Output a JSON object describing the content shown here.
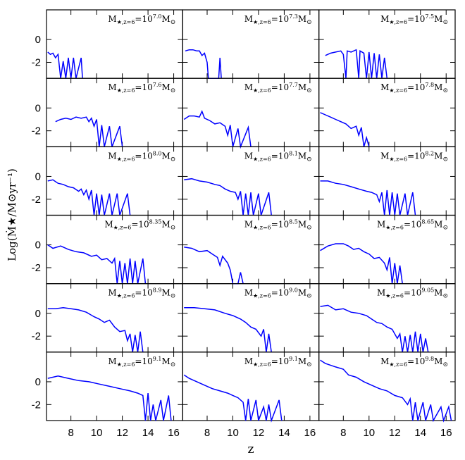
{
  "chart_data": {
    "type": "line",
    "color": "#0000ff",
    "xlabel": "z",
    "ylabel": "Log(Ṁ★/M⊙yr⁻¹)",
    "xlim": [
      6.1,
      16.7
    ],
    "ylim": [
      -3.4,
      2.6
    ],
    "xticks": [
      8,
      10,
      12,
      14,
      16
    ],
    "yticks": [
      -2,
      0
    ],
    "panel_label": {
      "symbol": "M",
      "subscript": "★,z=6",
      "base": "=10",
      "unit": "M",
      "unit_subscript": "⊙"
    },
    "panels": [
      {
        "exponent": "7.0",
        "x": [
          6.2,
          6.4,
          6.6,
          6.8,
          7.0,
          7.2,
          7.4,
          7.6,
          7.8,
          8.0,
          8.2,
          8.4,
          8.8,
          8.9
        ],
        "values": [
          -1.1,
          -1.3,
          -1.2,
          -1.6,
          -1.3,
          -3.4,
          -1.9,
          -3.4,
          -1.6,
          -3.4,
          -1.6,
          -3.4,
          -1.6,
          -3.4
        ]
      },
      {
        "exponent": "7.3",
        "x": [
          6.3,
          6.6,
          6.9,
          7.2,
          7.4,
          7.6,
          7.8,
          8.0,
          8.1,
          8.9,
          9.0,
          9.1
        ],
        "values": [
          -1.0,
          -0.9,
          -0.9,
          -1.0,
          -1.0,
          -1.4,
          -1.2,
          -2.0,
          -3.4,
          -3.4,
          -1.6,
          -3.4
        ]
      },
      {
        "exponent": "7.5",
        "x": [
          6.6,
          7.0,
          7.4,
          7.8,
          8.0,
          8.2,
          8.3,
          8.6,
          9.0,
          9.2,
          9.3,
          9.6,
          9.8,
          10.0,
          10.2,
          10.4,
          10.6,
          10.8,
          11.0,
          11.2,
          11.4
        ],
        "values": [
          -1.4,
          -1.2,
          -1.1,
          -1.0,
          -1.3,
          -3.4,
          -1.0,
          -1.1,
          -0.9,
          -3.4,
          -1.0,
          -1.2,
          -3.4,
          -1.1,
          -3.4,
          -1.2,
          -3.4,
          -1.3,
          -3.4,
          -1.6,
          -3.4
        ]
      },
      {
        "exponent": "7.6",
        "x": [
          6.8,
          7.2,
          7.6,
          8.0,
          8.4,
          8.8,
          9.2,
          9.4,
          9.6,
          9.8,
          10.0,
          10.2,
          10.4,
          10.6,
          11.0,
          11.2,
          11.8,
          12.0
        ],
        "values": [
          -1.2,
          -1.0,
          -0.9,
          -1.0,
          -0.8,
          -0.9,
          -0.8,
          -1.2,
          -0.9,
          -1.6,
          -1.0,
          -3.4,
          -1.5,
          -3.4,
          -1.6,
          -3.4,
          -1.6,
          -3.4
        ]
      },
      {
        "exponent": "7.7",
        "x": [
          6.2,
          6.6,
          7.0,
          7.4,
          7.6,
          7.8,
          8.2,
          8.6,
          9.0,
          9.4,
          9.6,
          9.8,
          10.0,
          10.4,
          10.6,
          11.2,
          11.4
        ],
        "values": [
          -1.0,
          -0.7,
          -0.7,
          -0.8,
          -0.3,
          -0.9,
          -1.1,
          -1.4,
          -1.3,
          -1.6,
          -2.4,
          -1.5,
          -3.4,
          -1.8,
          -3.4,
          -1.7,
          -3.4
        ]
      },
      {
        "exponent": "7.8",
        "x": [
          6.2,
          6.6,
          7.0,
          7.4,
          7.8,
          8.2,
          8.6,
          9.0,
          9.2,
          9.4,
          9.6,
          9.8,
          10.0
        ],
        "values": [
          -0.4,
          -0.6,
          -0.8,
          -1.0,
          -1.2,
          -1.4,
          -1.8,
          -1.6,
          -2.4,
          -1.7,
          -3.4,
          -2.6,
          -3.4
        ]
      },
      {
        "exponent": "8.0",
        "x": [
          6.2,
          6.6,
          7.0,
          7.4,
          7.8,
          8.2,
          8.6,
          8.8,
          9.0,
          9.2,
          9.4,
          9.6,
          9.8,
          10.0,
          10.2,
          10.4,
          10.6,
          11.0,
          11.2,
          11.6,
          11.8,
          12.4,
          12.6
        ],
        "values": [
          -0.4,
          -0.3,
          -0.6,
          -0.7,
          -0.9,
          -1.0,
          -1.3,
          -1.1,
          -1.6,
          -1.2,
          -2.0,
          -1.2,
          -3.4,
          -1.5,
          -3.4,
          -1.6,
          -3.4,
          -1.5,
          -3.4,
          -1.5,
          -3.4,
          -1.5,
          -3.4
        ]
      },
      {
        "exponent": "8.1",
        "x": [
          6.2,
          6.8,
          7.4,
          8.0,
          8.6,
          9.0,
          9.4,
          9.8,
          10.2,
          10.4,
          10.6,
          10.8,
          11.0,
          11.2,
          11.4,
          11.6,
          12.0,
          12.2,
          12.8,
          13.0
        ],
        "values": [
          -0.3,
          -0.2,
          -0.4,
          -0.5,
          -0.7,
          -0.8,
          -1.1,
          -1.3,
          -1.4,
          -2.0,
          -1.3,
          -3.4,
          -1.5,
          -3.4,
          -1.4,
          -3.4,
          -1.5,
          -3.4,
          -1.4,
          -3.4
        ]
      },
      {
        "exponent": "8.2",
        "x": [
          6.2,
          6.8,
          7.4,
          8.0,
          8.6,
          9.2,
          9.8,
          10.2,
          10.6,
          10.8,
          11.0,
          11.2,
          11.4,
          11.6,
          11.8,
          12.0,
          12.2,
          12.4,
          12.8,
          13.0,
          13.4,
          13.6
        ],
        "values": [
          -0.4,
          -0.4,
          -0.6,
          -0.7,
          -0.9,
          -1.1,
          -1.3,
          -1.4,
          -1.6,
          -2.2,
          -1.4,
          -3.4,
          -1.2,
          -3.4,
          -1.4,
          -3.4,
          -1.5,
          -3.4,
          -1.5,
          -3.4,
          -1.4,
          -3.4
        ]
      },
      {
        "exponent": "8.35",
        "x": [
          6.2,
          6.6,
          7.2,
          7.8,
          8.4,
          9.0,
          9.6,
          10.0,
          10.4,
          10.8,
          11.2,
          11.4,
          11.6,
          11.8,
          12.0,
          12.2,
          12.4,
          12.6,
          12.8,
          13.0,
          13.2,
          13.6,
          13.8
        ],
        "values": [
          0.0,
          -0.3,
          -0.1,
          -0.4,
          -0.6,
          -0.7,
          -1.0,
          -0.9,
          -1.3,
          -1.2,
          -1.6,
          -1.2,
          -3.4,
          -1.4,
          -3.4,
          -1.6,
          -3.4,
          -1.2,
          -3.4,
          -1.4,
          -3.4,
          -1.2,
          -3.4
        ]
      },
      {
        "exponent": "8.5",
        "x": [
          6.2,
          6.8,
          7.4,
          8.0,
          8.4,
          8.8,
          9.0,
          9.2,
          9.6,
          9.8,
          10.0,
          10.4,
          10.6,
          10.8
        ],
        "values": [
          -0.2,
          -0.3,
          -0.6,
          -0.5,
          -0.8,
          -1.1,
          -1.8,
          -1.0,
          -1.6,
          -2.2,
          -3.4,
          -3.4,
          -2.4,
          -3.4
        ]
      },
      {
        "exponent": "8.65",
        "x": [
          6.2,
          6.8,
          7.4,
          8.0,
          8.4,
          8.8,
          9.2,
          9.6,
          10.0,
          10.4,
          10.8,
          11.2,
          11.4,
          11.6,
          11.8,
          12.0,
          12.2,
          12.4,
          12.6
        ],
        "values": [
          -0.5,
          -0.1,
          0.1,
          0.1,
          -0.1,
          -0.4,
          -0.3,
          -0.6,
          -0.8,
          -1.2,
          -1.1,
          -1.6,
          -2.2,
          -1.1,
          -3.4,
          -1.6,
          -3.4,
          -1.8,
          -3.4
        ]
      },
      {
        "exponent": "8.9",
        "x": [
          6.2,
          6.8,
          7.4,
          8.0,
          8.6,
          9.2,
          9.8,
          10.2,
          10.6,
          11.0,
          11.4,
          11.8,
          12.2,
          12.4,
          12.6,
          12.8,
          13.0,
          13.2,
          13.4,
          13.6
        ],
        "values": [
          0.4,
          0.4,
          0.5,
          0.4,
          0.3,
          0.1,
          -0.3,
          -0.5,
          -0.8,
          -0.6,
          -1.2,
          -1.6,
          -1.5,
          -2.4,
          -1.8,
          -3.4,
          -1.9,
          -3.4,
          -1.6,
          -3.4
        ]
      },
      {
        "exponent": "9.0",
        "x": [
          6.2,
          7.0,
          7.8,
          8.6,
          9.4,
          10.0,
          10.6,
          11.0,
          11.4,
          11.8,
          12.2,
          12.4,
          12.6,
          12.8,
          13.0
        ],
        "values": [
          0.5,
          0.5,
          0.4,
          0.3,
          0.0,
          -0.2,
          -0.5,
          -0.8,
          -1.2,
          -1.4,
          -2.0,
          -1.4,
          -3.4,
          -1.8,
          -3.4
        ]
      },
      {
        "exponent": "9.05",
        "x": [
          6.2,
          6.8,
          7.4,
          8.0,
          8.6,
          9.2,
          9.8,
          10.2,
          10.6,
          11.0,
          11.4,
          11.8,
          12.2,
          12.4,
          12.6,
          12.8,
          13.0,
          13.2,
          13.4,
          13.6,
          13.8,
          14.0,
          14.2,
          14.4,
          14.6
        ],
        "values": [
          0.6,
          0.7,
          0.3,
          0.4,
          0.1,
          0.0,
          -0.2,
          -0.5,
          -0.8,
          -0.9,
          -1.2,
          -1.4,
          -2.2,
          -1.8,
          -3.4,
          -2.0,
          -3.4,
          -1.9,
          -3.4,
          -1.6,
          -3.4,
          -1.8,
          -3.4,
          -2.2,
          -3.4
        ]
      },
      {
        "exponent": "9.1",
        "x": [
          6.2,
          7.0,
          7.8,
          8.6,
          9.4,
          10.2,
          11.0,
          11.8,
          12.6,
          13.2,
          13.6,
          13.8,
          14.0,
          14.2,
          14.4,
          14.6,
          15.0,
          15.2,
          15.6,
          15.8
        ],
        "values": [
          0.3,
          0.5,
          0.3,
          0.1,
          0.0,
          -0.2,
          -0.4,
          -0.6,
          -0.8,
          -1.0,
          -1.2,
          -3.4,
          -1.0,
          -3.4,
          -2.0,
          -3.4,
          -1.6,
          -3.4,
          -1.2,
          -3.4
        ]
      },
      {
        "exponent": "9.1",
        "x": [
          6.2,
          6.6,
          7.2,
          7.8,
          8.4,
          9.0,
          9.6,
          10.0,
          10.4,
          10.8,
          11.0,
          11.2,
          11.4,
          11.8,
          12.0,
          12.4,
          12.6,
          12.8,
          13.0,
          13.6,
          13.8
        ],
        "values": [
          0.6,
          0.3,
          0.0,
          -0.3,
          -0.6,
          -0.8,
          -1.0,
          -1.2,
          -1.4,
          -1.8,
          -3.4,
          -1.5,
          -3.4,
          -1.6,
          -3.4,
          -2.2,
          -3.4,
          -2.0,
          -3.4,
          -1.6,
          -3.4
        ]
      },
      {
        "exponent": "9.8",
        "x": [
          6.2,
          6.6,
          7.4,
          8.0,
          8.4,
          9.0,
          9.6,
          10.2,
          10.8,
          11.4,
          12.0,
          12.6,
          13.0,
          13.2,
          13.4,
          13.6,
          13.8,
          14.2,
          14.4,
          14.8,
          15.0,
          15.6,
          15.8,
          16.2,
          16.4
        ],
        "values": [
          1.9,
          1.6,
          1.3,
          1.1,
          0.6,
          0.4,
          0.0,
          -0.3,
          -0.6,
          -0.8,
          -1.2,
          -1.4,
          -2.0,
          -1.5,
          -3.4,
          -1.8,
          -3.4,
          -1.8,
          -3.4,
          -2.0,
          -3.4,
          -2.2,
          -3.4,
          -2.2,
          -3.4
        ]
      }
    ]
  }
}
